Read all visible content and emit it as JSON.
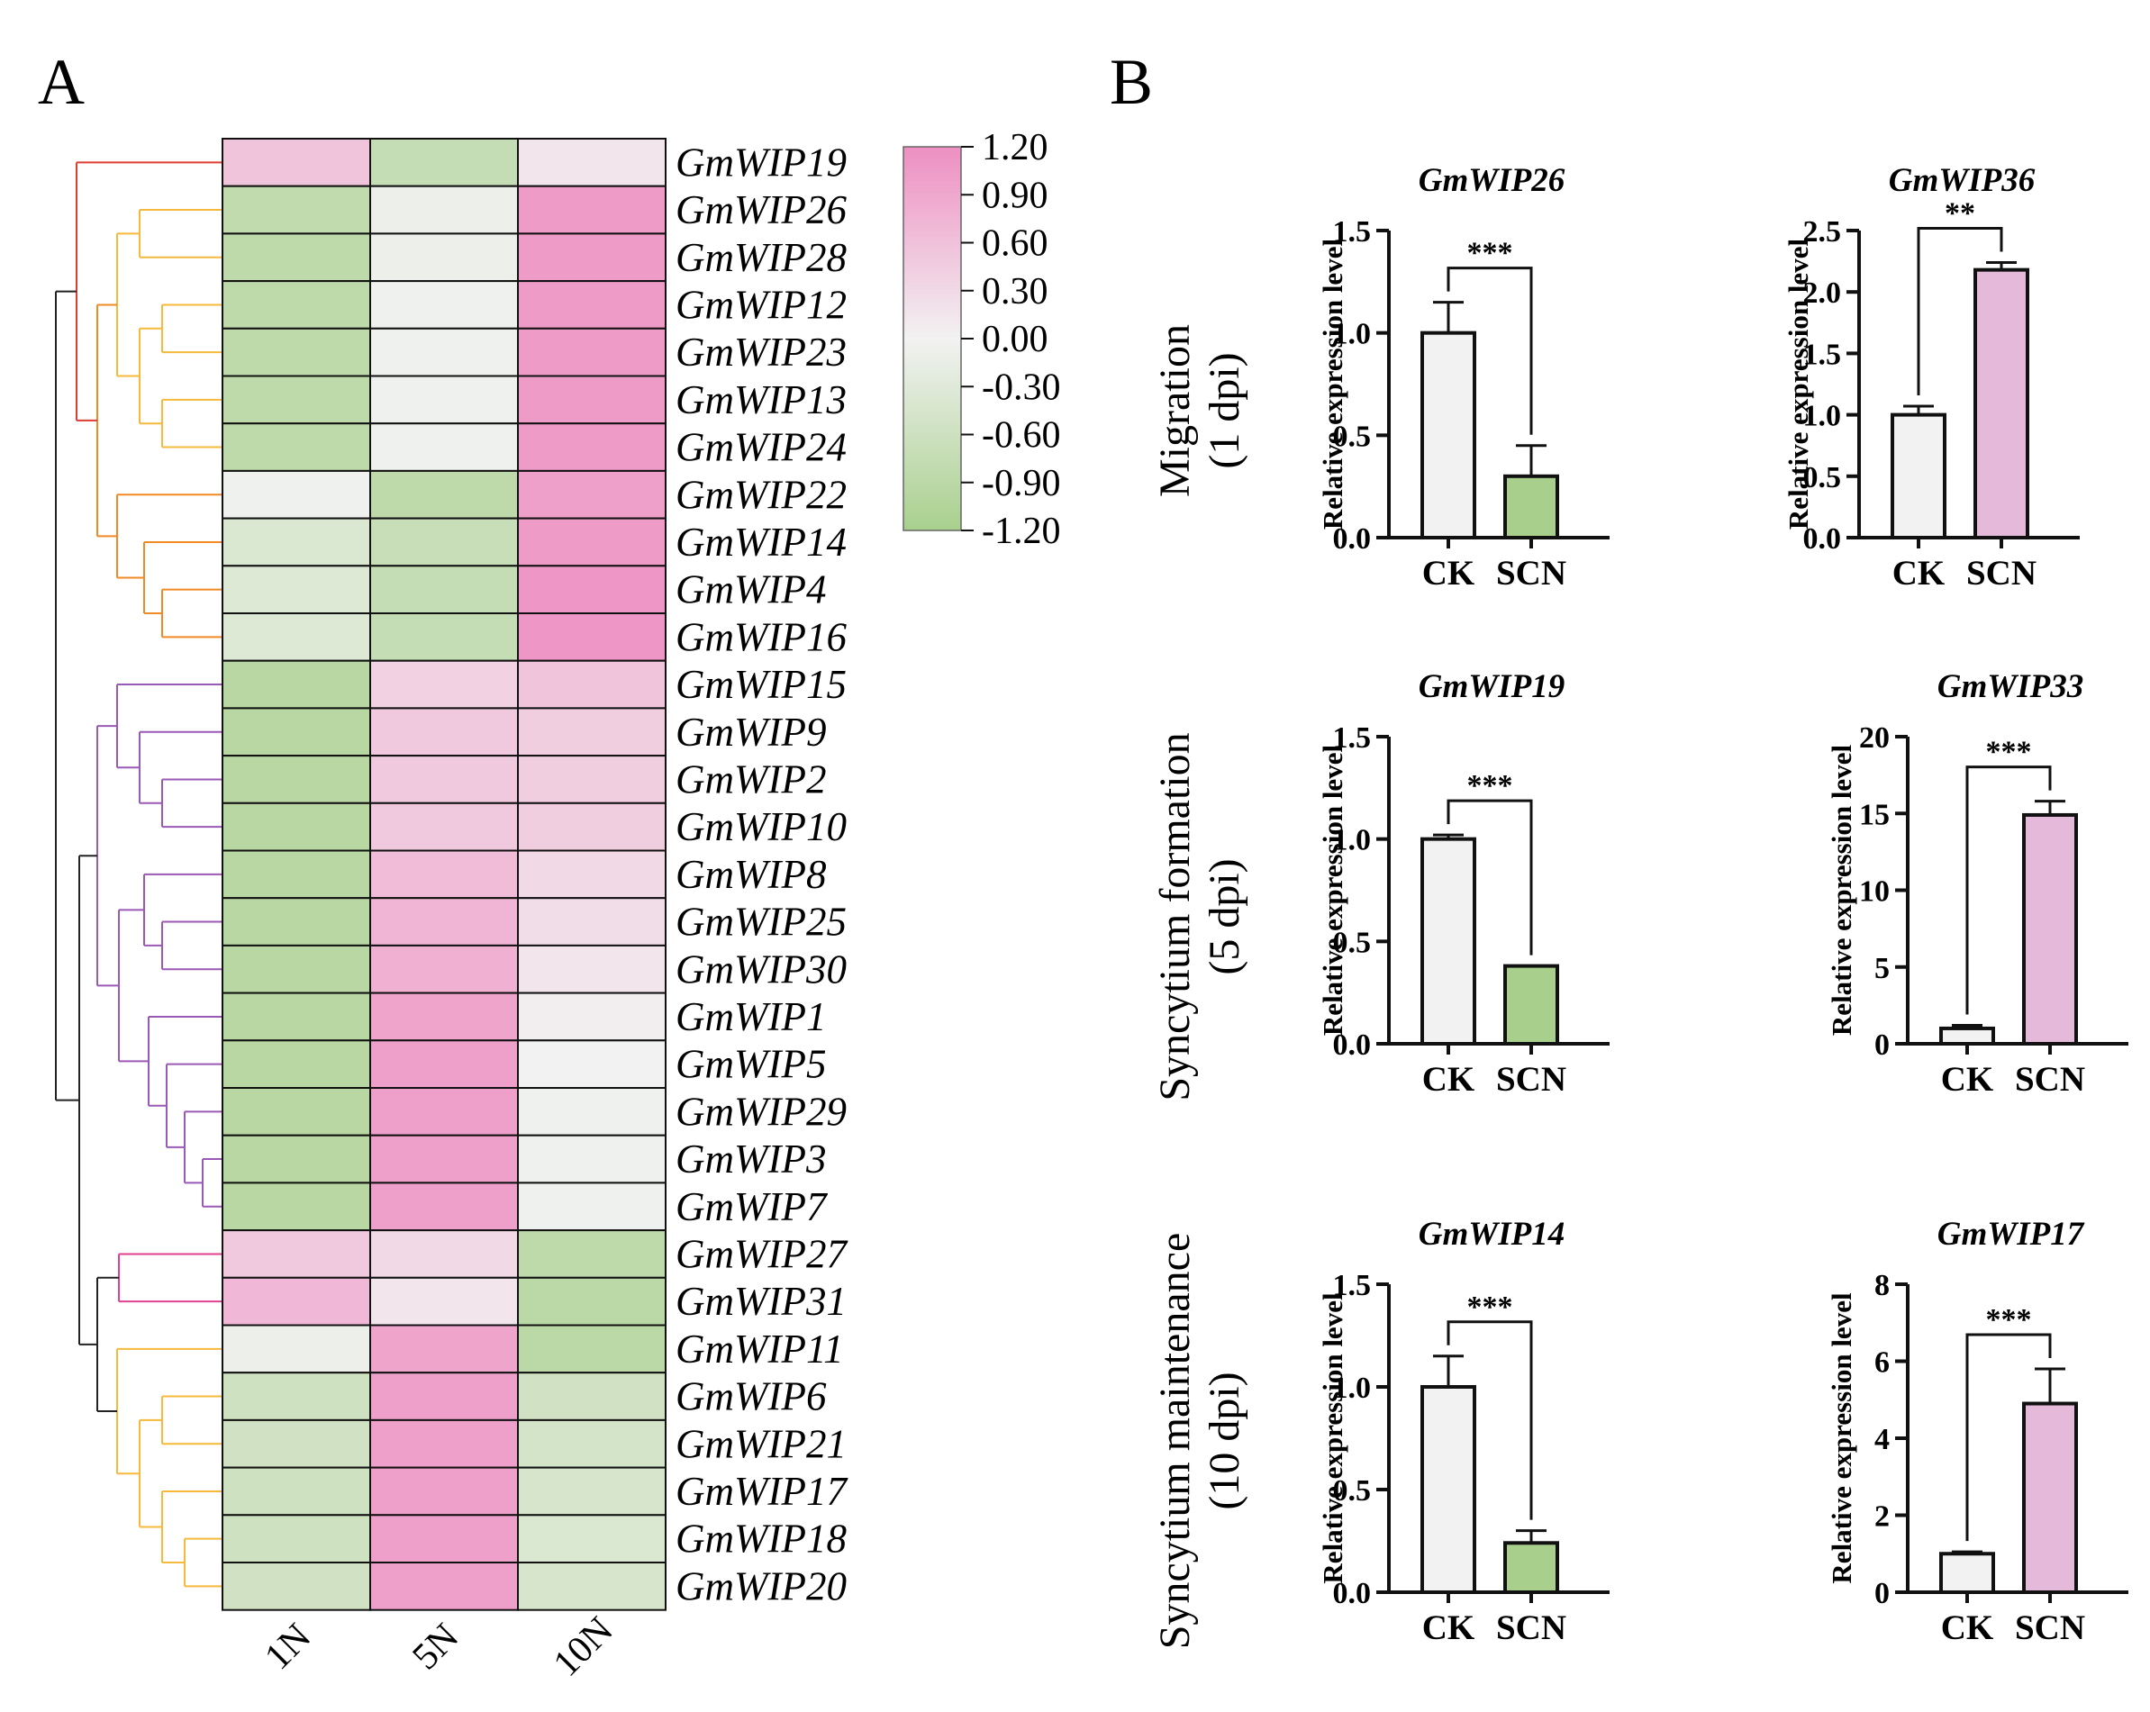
{
  "panel_labels": {
    "a": "A",
    "b": "B"
  },
  "colors": {
    "low": "#a9d08e",
    "mid": "#f2f2f2",
    "high": "#ee8fc2",
    "bar_ck": "#f1f2f1",
    "bar_scn_green": "#a8d08c",
    "bar_scn_pink": "#e5b9d9",
    "dendro_red": "#e03c31",
    "dendro_orange": "#f08a24",
    "dendro_yellow": "#f5b93b",
    "dendro_purple": "#9b59b6",
    "dendro_magenta": "#e0408f",
    "dendro_black": "#222222"
  },
  "chart_data": [
    {
      "type": "heatmap",
      "panel": "A",
      "columns": [
        "1N",
        "5N",
        "10N"
      ],
      "rows": [
        "GmWIP19",
        "GmWIP26",
        "GmWIP28",
        "GmWIP12",
        "GmWIP23",
        "GmWIP13",
        "GmWIP24",
        "GmWIP22",
        "GmWIP14",
        "GmWIP4",
        "GmWIP16",
        "GmWIP15",
        "GmWIP9",
        "GmWIP2",
        "GmWIP10",
        "GmWIP8",
        "GmWIP25",
        "GmWIP30",
        "GmWIP1",
        "GmWIP5",
        "GmWIP29",
        "GmWIP3",
        "GmWIP7",
        "GmWIP27",
        "GmWIP31",
        "GmWIP11",
        "GmWIP6",
        "GmWIP21",
        "GmWIP17",
        "GmWIP18",
        "GmWIP20"
      ],
      "values": [
        [
          0.55,
          -0.75,
          0.15
        ],
        [
          -0.8,
          -0.1,
          1.05
        ],
        [
          -0.85,
          -0.1,
          1.05
        ],
        [
          -0.85,
          -0.05,
          1.05
        ],
        [
          -0.85,
          -0.05,
          1.05
        ],
        [
          -0.85,
          -0.05,
          1.05
        ],
        [
          -0.85,
          -0.05,
          1.05
        ],
        [
          -0.05,
          -0.85,
          1.0
        ],
        [
          -0.4,
          -0.7,
          1.05
        ],
        [
          -0.35,
          -0.75,
          1.1
        ],
        [
          -0.35,
          -0.75,
          1.1
        ],
        [
          -0.95,
          0.4,
          0.55
        ],
        [
          -0.95,
          0.5,
          0.45
        ],
        [
          -0.95,
          0.5,
          0.45
        ],
        [
          -0.95,
          0.5,
          0.45
        ],
        [
          -0.95,
          0.65,
          0.3
        ],
        [
          -0.95,
          0.75,
          0.25
        ],
        [
          -0.95,
          0.8,
          0.15
        ],
        [
          -0.95,
          0.95,
          0.05
        ],
        [
          -0.95,
          1.0,
          0.0
        ],
        [
          -0.95,
          1.0,
          -0.05
        ],
        [
          -0.95,
          1.0,
          -0.05
        ],
        [
          -0.95,
          1.0,
          -0.05
        ],
        [
          0.5,
          0.3,
          -0.85
        ],
        [
          0.7,
          0.15,
          -0.9
        ],
        [
          -0.1,
          0.95,
          -0.9
        ],
        [
          -0.6,
          1.0,
          -0.55
        ],
        [
          -0.55,
          1.0,
          -0.5
        ],
        [
          -0.6,
          1.0,
          -0.45
        ],
        [
          -0.6,
          1.0,
          -0.4
        ],
        [
          -0.55,
          1.0,
          -0.45
        ]
      ],
      "colorbar": {
        "ticks": [
          "1.20",
          "0.90",
          "0.60",
          "0.30",
          "0.00",
          "-0.30",
          "-0.60",
          "-0.90",
          "-1.20"
        ],
        "range": [
          -1.2,
          1.2
        ]
      }
    },
    {
      "type": "bar",
      "panel": "B",
      "row_labels": [
        {
          "line1": "Migration",
          "line2": "(1 dpi)"
        },
        {
          "line1": "Syncytium formation",
          "line2": "(5 dpi)"
        },
        {
          "line1": "Syncytium maintenance",
          "line2": "(10 dpi)"
        }
      ],
      "ylabel": "Relative expression level",
      "categories": [
        "CK",
        "SCN"
      ],
      "plots": [
        {
          "title": "GmWIP26",
          "ylim": [
            0,
            1.5
          ],
          "yticks": [
            "0.0",
            "0.5",
            "1.0",
            "1.5"
          ],
          "tick_values": [
            0,
            0.5,
            1.0,
            1.5
          ],
          "values": [
            1.0,
            0.3
          ],
          "errors": [
            0.15,
            0.15
          ],
          "sig": "***",
          "scn_color": "green"
        },
        {
          "title": "GmWIP36",
          "ylim": [
            0,
            2.5
          ],
          "yticks": [
            "0.0",
            "0.5",
            "1.0",
            "1.5",
            "2.0",
            "2.5"
          ],
          "tick_values": [
            0,
            0.5,
            1.0,
            1.5,
            2.0,
            2.5
          ],
          "values": [
            1.0,
            2.18
          ],
          "errors": [
            0.07,
            0.06
          ],
          "sig": "**",
          "scn_color": "pink"
        },
        {
          "title": "GmWIP19",
          "ylim": [
            0,
            1.5
          ],
          "yticks": [
            "0.0",
            "0.5",
            "1.0",
            "1.5"
          ],
          "tick_values": [
            0,
            0.5,
            1.0,
            1.5
          ],
          "values": [
            1.0,
            0.38
          ],
          "errors": [
            0.02,
            0.0
          ],
          "sig": "***",
          "scn_color": "green"
        },
        {
          "title": "GmWIP33",
          "ylim": [
            0,
            20
          ],
          "yticks": [
            "0",
            "5",
            "10",
            "15",
            "20"
          ],
          "tick_values": [
            0,
            5,
            10,
            15,
            20
          ],
          "values": [
            1.0,
            14.9
          ],
          "errors": [
            0.2,
            0.9
          ],
          "sig": "***",
          "scn_color": "pink"
        },
        {
          "title": "GmWIP14",
          "ylim": [
            0,
            1.5
          ],
          "yticks": [
            "0.0",
            "0.5",
            "1.0",
            "1.5"
          ],
          "tick_values": [
            0,
            0.5,
            1.0,
            1.5
          ],
          "values": [
            1.0,
            0.24
          ],
          "errors": [
            0.15,
            0.06
          ],
          "sig": "***",
          "scn_color": "green"
        },
        {
          "title": "GmWIP17",
          "ylim": [
            0,
            8
          ],
          "yticks": [
            "0",
            "2",
            "4",
            "6",
            "8"
          ],
          "tick_values": [
            0,
            2,
            4,
            6,
            8
          ],
          "values": [
            1.0,
            4.9
          ],
          "errors": [
            0.05,
            0.9
          ],
          "sig": "***",
          "scn_color": "pink"
        }
      ]
    }
  ]
}
